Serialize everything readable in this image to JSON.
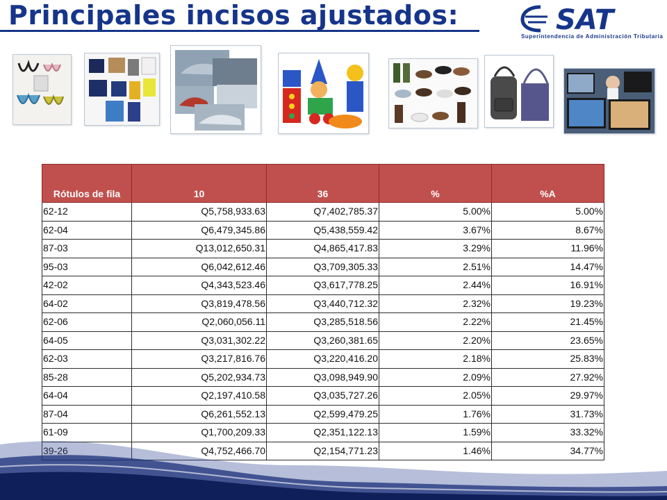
{
  "slide": {
    "title": "Principales incisos ajustados:",
    "logo_text": "SAT",
    "logo_subtitle": "Superintendencia de Administración Tributaria"
  },
  "thumbnails": [
    {
      "name": "ropa-interior",
      "icon": "lingerie-image"
    },
    {
      "name": "prendas-vestir",
      "icon": "clothing-image"
    },
    {
      "name": "vehiculos",
      "icon": "cars-image"
    },
    {
      "name": "juguetes",
      "icon": "toy-blocks-image"
    },
    {
      "name": "calzado",
      "icon": "shoes-image"
    },
    {
      "name": "bolsas",
      "icon": "bags-image"
    },
    {
      "name": "televisores",
      "icon": "tv-image"
    }
  ],
  "table": {
    "headers": [
      "Rótulos de fila",
      "10",
      "36",
      "%",
      "%A"
    ],
    "rows": [
      [
        "62-12",
        "Q5,758,933.63",
        "Q7,402,785.37",
        "5.00%",
        "5.00%"
      ],
      [
        "62-04",
        "Q6,479,345.86",
        "Q5,438,559.42",
        "3.67%",
        "8.67%"
      ],
      [
        "87-03",
        "Q13,012,650.31",
        "Q4,865,417.83",
        "3.29%",
        "11.96%"
      ],
      [
        "95-03",
        "Q6,042,612.46",
        "Q3,709,305.33",
        "2.51%",
        "14.47%"
      ],
      [
        "42-02",
        "Q4,343,523.46",
        "Q3,617,778.25",
        "2.44%",
        "16.91%"
      ],
      [
        "64-02",
        "Q3,819,478.56",
        "Q3,440,712.32",
        "2.32%",
        "19.23%"
      ],
      [
        "62-06",
        "Q2,060,056.11",
        "Q3,285,518.56",
        "2.22%",
        "21.45%"
      ],
      [
        "64-05",
        "Q3,031,302.22",
        "Q3,260,381.65",
        "2.20%",
        "23.65%"
      ],
      [
        "62-03",
        "Q3,217,816.76",
        "Q3,220,416.20",
        "2.18%",
        "25.83%"
      ],
      [
        "85-28",
        "Q5,202,934.73",
        "Q3,098,949.90",
        "2.09%",
        "27.92%"
      ],
      [
        "64-04",
        "Q2,197,410.58",
        "Q3,035,727.26",
        "2.05%",
        "29.97%"
      ],
      [
        "87-04",
        "Q6,261,552.13",
        "Q2,599,479.25",
        "1.76%",
        "31.73%"
      ],
      [
        "61-09",
        "Q1,700,209.33",
        "Q2,351,122.13",
        "1.59%",
        "33.32%"
      ],
      [
        "39-26",
        "Q4,752,466.70",
        "Q2,154,771.23",
        "1.46%",
        "34.77%"
      ]
    ]
  },
  "colors": {
    "title": "#16358a",
    "header_bg": "#c0504d",
    "header_text": "#ffffff"
  }
}
